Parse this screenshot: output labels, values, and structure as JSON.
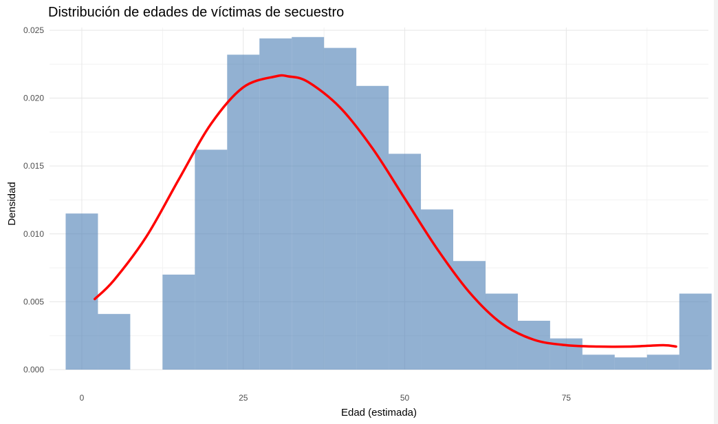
{
  "chart_data": {
    "type": "bar",
    "title": "Distribución de edades de víctimas de secuestro",
    "xlabel": "Edad (estimada)",
    "ylabel": "Densidad",
    "xlim": [
      -5,
      97
    ],
    "ylim": [
      0,
      0.0252
    ],
    "x_ticks": [
      0,
      25,
      50,
      75
    ],
    "x_tick_labels": [
      "0",
      "25",
      "50",
      "75"
    ],
    "y_ticks": [
      0,
      0.005,
      0.01,
      0.015,
      0.02,
      0.025
    ],
    "y_tick_labels": [
      "0.000",
      "0.005",
      "0.010",
      "0.015",
      "0.020",
      "0.025"
    ],
    "grid": true,
    "legend": "none",
    "histogram": {
      "bin_width": 5,
      "bins": [
        {
          "x0": -2.5,
          "x1": 2.5,
          "value": 0.0115
        },
        {
          "x0": 2.5,
          "x1": 7.5,
          "value": 0.0041
        },
        {
          "x0": 7.5,
          "x1": 12.5,
          "value": 0.0
        },
        {
          "x0": 12.5,
          "x1": 17.5,
          "value": 0.007
        },
        {
          "x0": 17.5,
          "x1": 22.5,
          "value": 0.0162
        },
        {
          "x0": 22.5,
          "x1": 27.5,
          "value": 0.0232
        },
        {
          "x0": 27.5,
          "x1": 32.5,
          "value": 0.0244
        },
        {
          "x0": 32.5,
          "x1": 37.5,
          "value": 0.0245
        },
        {
          "x0": 37.5,
          "x1": 42.5,
          "value": 0.0237
        },
        {
          "x0": 42.5,
          "x1": 47.5,
          "value": 0.0209
        },
        {
          "x0": 47.5,
          "x1": 52.5,
          "value": 0.0159
        },
        {
          "x0": 52.5,
          "x1": 57.5,
          "value": 0.0118
        },
        {
          "x0": 57.5,
          "x1": 62.5,
          "value": 0.008
        },
        {
          "x0": 62.5,
          "x1": 67.5,
          "value": 0.0056
        },
        {
          "x0": 67.5,
          "x1": 72.5,
          "value": 0.0036
        },
        {
          "x0": 72.5,
          "x1": 77.5,
          "value": 0.0023
        },
        {
          "x0": 77.5,
          "x1": 82.5,
          "value": 0.0011
        },
        {
          "x0": 82.5,
          "x1": 87.5,
          "value": 0.0009
        },
        {
          "x0": 87.5,
          "x1": 92.5,
          "value": 0.0011
        },
        {
          "x0": 92.5,
          "x1": 97.5,
          "value": 0.0056
        }
      ],
      "color": "#4f81b7",
      "opacity": 0.62
    },
    "density_curve": {
      "color": "#ff0000",
      "x": [
        2,
        5,
        10,
        15,
        20,
        25,
        30,
        32,
        35,
        40,
        45,
        50,
        55,
        60,
        65,
        70,
        75,
        80,
        85,
        90,
        92
      ],
      "y": [
        0.0052,
        0.0066,
        0.0098,
        0.014,
        0.0181,
        0.0208,
        0.0216,
        0.0216,
        0.0212,
        0.0193,
        0.0163,
        0.0126,
        0.0089,
        0.0057,
        0.0034,
        0.0022,
        0.0018,
        0.0017,
        0.0017,
        0.0018,
        0.0017
      ]
    }
  }
}
